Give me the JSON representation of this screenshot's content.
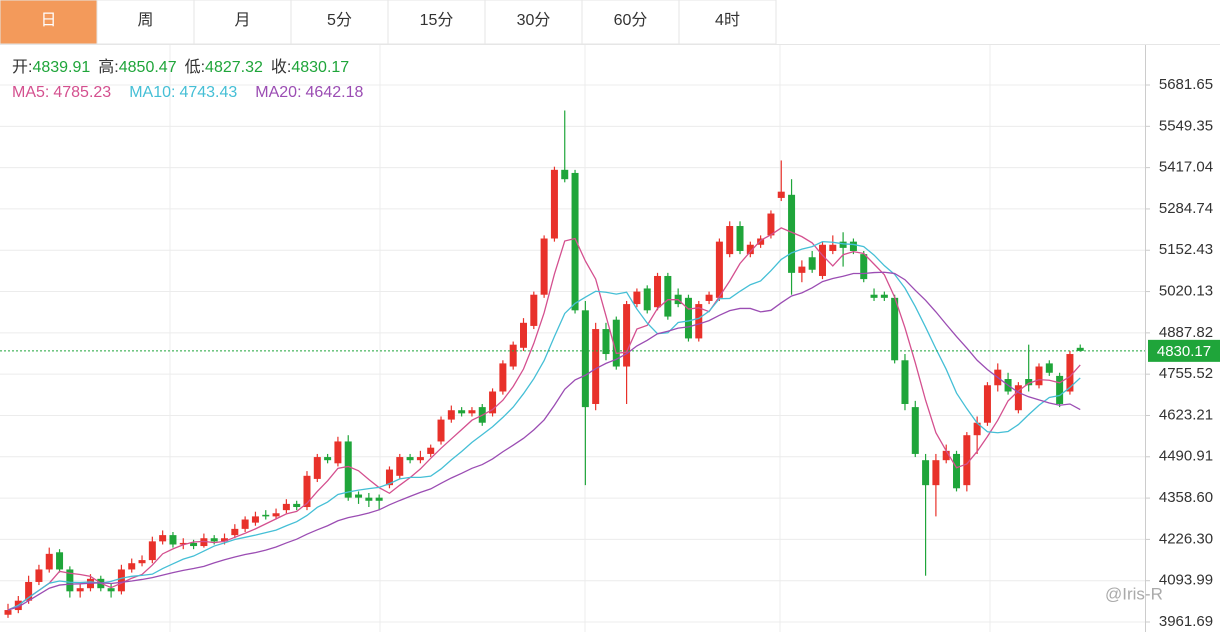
{
  "tabs": [
    "日",
    "周",
    "月",
    "5分",
    "15分",
    "30分",
    "60分",
    "4时"
  ],
  "active_tab": 0,
  "chart_data": {
    "type": "candlestick",
    "ohlc_labels": [
      "开:",
      "高:",
      "低:",
      "收:"
    ],
    "up_color": "#e8312a",
    "down_color": "#1fa53a",
    "open": [
      3985,
      4000,
      4030,
      4090,
      4130,
      4185,
      4130,
      4060,
      4070,
      4100,
      4070,
      4060,
      4130,
      4150,
      4160,
      4220,
      4240,
      4210,
      4215,
      4205,
      4230,
      4220,
      4240,
      4260,
      4280,
      4305,
      4300,
      4320,
      4340,
      4330,
      4420,
      4490,
      4470,
      4540,
      4370,
      4360,
      4360,
      4400,
      4430,
      4490,
      4480,
      4500,
      4540,
      4610,
      4640,
      4630,
      4650,
      4630,
      4700,
      4780,
      4840,
      4910,
      5010,
      5190,
      5410,
      5400,
      4960,
      4660,
      4900,
      4930,
      4780,
      4980,
      5030,
      4970,
      5070,
      5010,
      5000,
      4870,
      4990,
      5000,
      5140,
      5230,
      5140,
      5170,
      5200,
      5320,
      5330,
      5080,
      5130,
      5070,
      5150,
      5180,
      5180,
      5140,
      5010,
      5010,
      5000,
      4800,
      4650,
      4480,
      4400,
      4480,
      4500,
      4400,
      4560,
      4600,
      4720,
      4740,
      4640,
      4740,
      4720,
      4790,
      4750,
      4700,
      4839.91
    ],
    "high": [
      4020,
      4045,
      4110,
      4145,
      4200,
      4195,
      4140,
      4085,
      4115,
      4110,
      4085,
      4145,
      4165,
      4175,
      4235,
      4255,
      4250,
      4230,
      4225,
      4245,
      4240,
      4245,
      4275,
      4300,
      4315,
      4320,
      4325,
      4355,
      4350,
      4445,
      4500,
      4500,
      4555,
      4560,
      4380,
      4375,
      4370,
      4460,
      4500,
      4500,
      4510,
      4530,
      4620,
      4655,
      4650,
      4650,
      4660,
      4710,
      4800,
      4860,
      4935,
      5020,
      5200,
      5420,
      5600,
      5410,
      4990,
      4920,
      4920,
      4940,
      4990,
      5030,
      5040,
      5080,
      5080,
      5030,
      5010,
      4990,
      5020,
      5190,
      5245,
      5245,
      5180,
      5200,
      5280,
      5440,
      5380,
      5120,
      5150,
      5180,
      5200,
      5210,
      5190,
      5150,
      5030,
      5020,
      5010,
      4820,
      4670,
      4500,
      4500,
      4530,
      4510,
      4570,
      4620,
      4730,
      4790,
      4760,
      4730,
      4850,
      4790,
      4800,
      4760,
      4830,
      4850.47
    ],
    "low": [
      3975,
      3990,
      4020,
      4080,
      4120,
      4120,
      4040,
      4040,
      4060,
      4060,
      4040,
      4050,
      4120,
      4140,
      4150,
      4210,
      4200,
      4195,
      4195,
      4200,
      4210,
      4210,
      4230,
      4250,
      4270,
      4290,
      4290,
      4310,
      4320,
      4320,
      4410,
      4470,
      4460,
      4350,
      4340,
      4330,
      4320,
      4390,
      4420,
      4470,
      4470,
      4490,
      4530,
      4600,
      4620,
      4620,
      4590,
      4620,
      4690,
      4770,
      4830,
      4900,
      5000,
      5180,
      5370,
      4950,
      4400,
      4640,
      4800,
      4770,
      4660,
      4970,
      4950,
      4960,
      4930,
      4970,
      4860,
      4860,
      4980,
      4990,
      5130,
      5140,
      5130,
      5160,
      5190,
      5310,
      5010,
      5050,
      5080,
      5060,
      5140,
      5100,
      5140,
      5050,
      4990,
      4990,
      4790,
      4640,
      4490,
      4110,
      4300,
      4470,
      4380,
      4380,
      4500,
      4590,
      4700,
      4690,
      4630,
      4700,
      4710,
      4750,
      4650,
      4690,
      4827.32
    ],
    "close": [
      4000,
      4030,
      4090,
      4130,
      4180,
      4130,
      4060,
      4070,
      4100,
      4070,
      4060,
      4130,
      4150,
      4160,
      4220,
      4240,
      4210,
      4215,
      4205,
      4230,
      4220,
      4230,
      4260,
      4290,
      4300,
      4300,
      4310,
      4340,
      4330,
      4430,
      4490,
      4480,
      4540,
      4360,
      4360,
      4350,
      4350,
      4450,
      4490,
      4480,
      4490,
      4520,
      4610,
      4640,
      4630,
      4640,
      4600,
      4700,
      4790,
      4850,
      4920,
      5010,
      5190,
      5410,
      5380,
      4960,
      4650,
      4900,
      4820,
      4780,
      4980,
      5020,
      4960,
      5070,
      4940,
      4980,
      4870,
      4980,
      5010,
      5180,
      5230,
      5150,
      5170,
      5190,
      5270,
      5340,
      5080,
      5100,
      5090,
      5170,
      5170,
      5160,
      5150,
      5060,
      5000,
      5000,
      4800,
      4660,
      4500,
      4400,
      4480,
      4510,
      4390,
      4560,
      4600,
      4720,
      4770,
      4700,
      4720,
      4720,
      4780,
      4760,
      4660,
      4820,
      4830.17
    ],
    "ma": [
      {
        "name": "MA5:",
        "color": "#d4508f",
        "values": [
          4000,
          4015,
          4040,
          4063,
          4086,
          4124,
          4118,
          4114,
          4108,
          4086,
          4072,
          4086,
          4102,
          4114,
          4144,
          4180,
          4196,
          4209,
          4218,
          4220,
          4216,
          4220,
          4233,
          4246,
          4260,
          4276,
          4292,
          4308,
          4316,
          4342,
          4380,
          4414,
          4454,
          4460,
          4446,
          4418,
          4392,
          4374,
          4400,
          4424,
          4452,
          4486,
          4518,
          4548,
          4578,
          4608,
          4624,
          4642,
          4672,
          4716,
          4772,
          4854,
          4952,
          5076,
          5182,
          5190,
          5118,
          5060,
          4942,
          4822,
          4826,
          4900,
          4912,
          4966,
          4994,
          4994,
          4964,
          4968,
          4956,
          5004,
          5054,
          5110,
          5148,
          5184,
          5202,
          5224,
          5210,
          5196,
          5176,
          5136,
          5102,
          5138,
          5148,
          5142,
          5108,
          5074,
          5002,
          4904,
          4792,
          4672,
          4568,
          4510,
          4456,
          4468,
          4508,
          4556,
          4608,
          4670,
          4702,
          4726,
          4738,
          4736,
          4728,
          4748,
          4785.23
        ]
      },
      {
        "name": "MA10:",
        "color": "#45bfd6",
        "values": [
          4000,
          4015,
          4040,
          4063,
          4086,
          4093,
          4089,
          4088,
          4090,
          4086,
          4092,
          4102,
          4108,
          4111,
          4115,
          4133,
          4148,
          4163,
          4173,
          4189,
          4205,
          4215,
          4226,
          4233,
          4240,
          4248,
          4256,
          4270,
          4283,
          4303,
          4329,
          4346,
          4370,
          4378,
          4384,
          4389,
          4393,
          4405,
          4420,
          4425,
          4425,
          4429,
          4452,
          4481,
          4508,
          4537,
          4562,
          4587,
          4617,
          4650,
          4693,
          4741,
          4799,
          4876,
          4950,
          4982,
          5002,
          5021,
          5018,
          5012,
          5018,
          4964,
          4919,
          4885,
          4888,
          4921,
          4926,
          4934,
          4957,
          4997,
          4998,
          5021,
          5042,
          5054,
          5087,
          5123,
          5144,
          5156,
          5164,
          5180,
          5178,
          5173,
          5171,
          5164,
          5137,
          5103,
          5075,
          5031,
          4972,
          4906,
          4837,
          4771,
          4695,
          4645,
          4599,
          4571,
          4568,
          4572,
          4594,
          4626,
          4656,
          4681,
          4687,
          4713,
          4743.43
        ]
      },
      {
        "name": "MA20:",
        "color": "#9b4db3",
        "values": [
          4000,
          4010,
          4030,
          4050,
          4070,
          4080,
          4083,
          4084,
          4086,
          4087,
          4085,
          4089,
          4093,
          4098,
          4104,
          4112,
          4120,
          4127,
          4133,
          4140,
          4151,
          4161,
          4170,
          4178,
          4184,
          4192,
          4202,
          4215,
          4227,
          4243,
          4257,
          4270,
          4286,
          4296,
          4303,
          4311,
          4321,
          4337,
          4351,
          4364,
          4377,
          4388,
          4406,
          4423,
          4438,
          4454,
          4466,
          4484,
          4507,
          4528,
          4550,
          4577,
          4609,
          4656,
          4707,
          4737,
          4752,
          4773,
          4790,
          4803,
          4821,
          4846,
          4864,
          4885,
          4893,
          4903,
          4907,
          4916,
          4927,
          4944,
          4959,
          4966,
          4966,
          4955,
          4960,
          4984,
          5006,
          5016,
          5032,
          5052,
          5062,
          5069,
          5078,
          5078,
          5081,
          5082,
          5078,
          5058,
          5024,
          4992,
          4955,
          4915,
          4876,
          4839,
          4800,
          4770,
          4745,
          4720,
          4697,
          4683,
          4673,
          4663,
          4656,
          4660,
          4642.18
        ]
      }
    ],
    "ylim": [
      3929.7,
      5809.8
    ],
    "yticks": [
      5681.65,
      5549.35,
      5417.04,
      5284.74,
      5152.43,
      5020.13,
      4887.82,
      4755.52,
      4623.21,
      4490.91,
      {
        "value": 4358.6,
        "label": "4358.60"
      },
      {
        "value": 4226.3,
        "label": "4226.30"
      },
      4093.99,
      3961.69
    ],
    "grid": true
  },
  "watermark": "@Iris-R"
}
